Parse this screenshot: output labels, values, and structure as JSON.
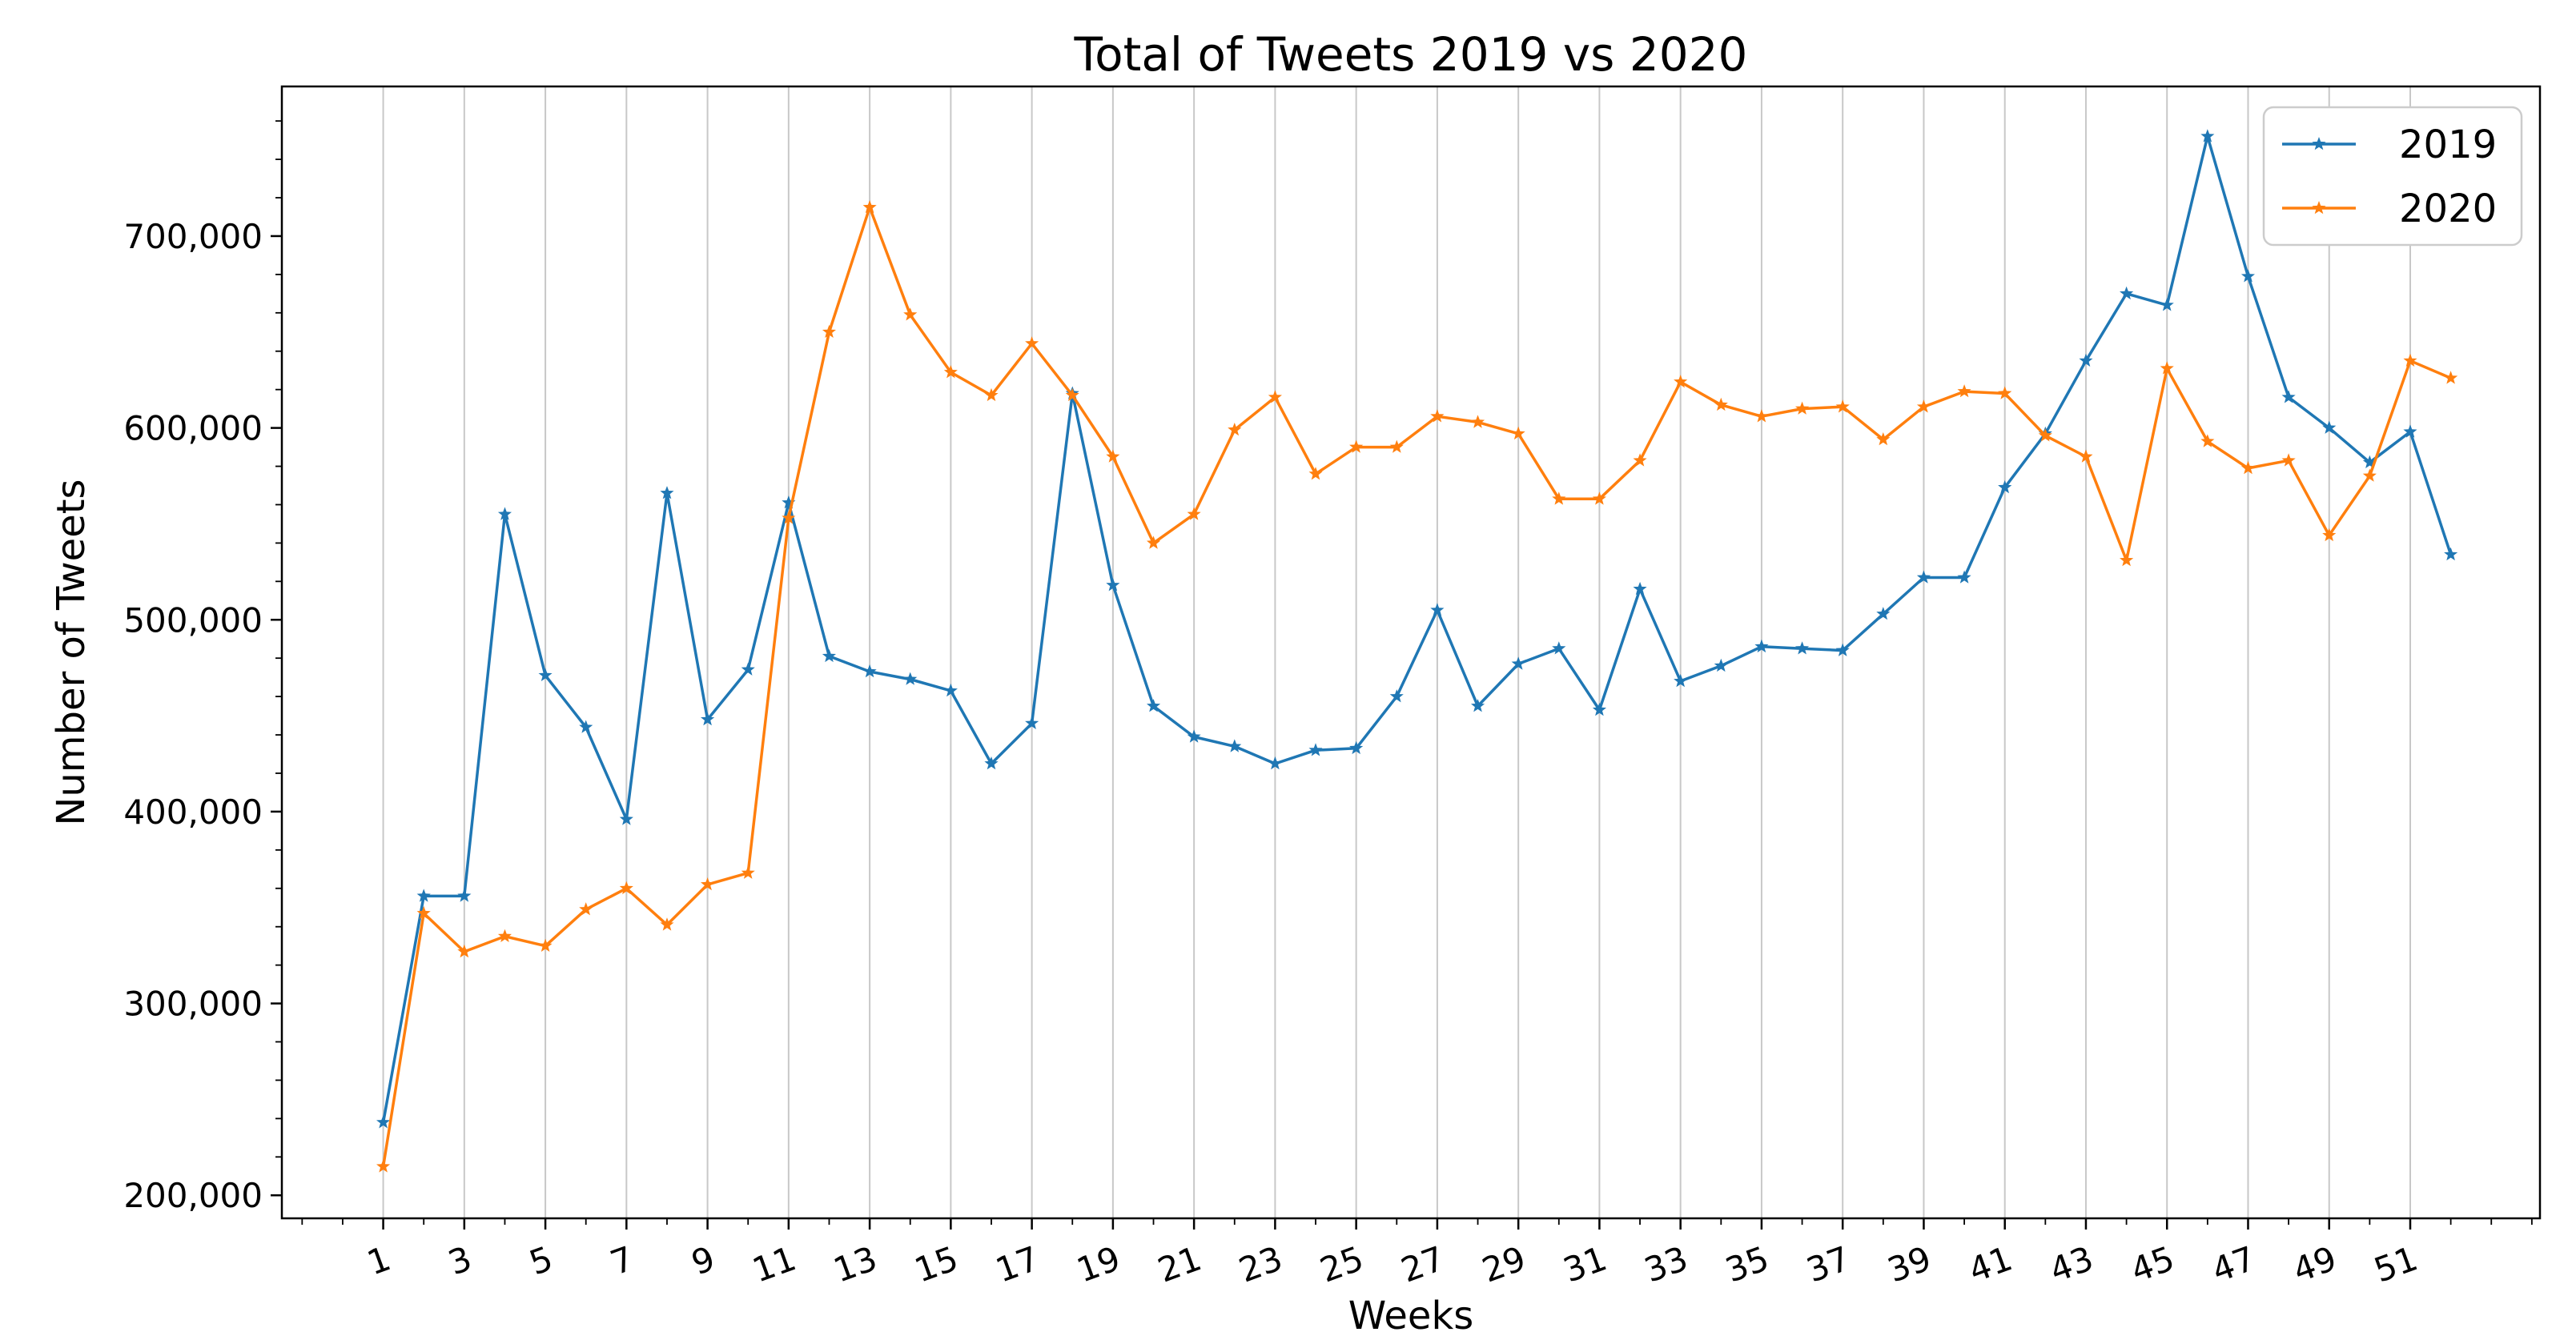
{
  "chart_data": {
    "type": "line",
    "title": "Total of Tweets 2019 vs 2020",
    "xlabel": "Weeks",
    "ylabel": "Number of Tweets",
    "x": [
      1,
      2,
      3,
      4,
      5,
      6,
      7,
      8,
      9,
      10,
      11,
      12,
      13,
      14,
      15,
      16,
      17,
      18,
      19,
      20,
      21,
      22,
      23,
      24,
      25,
      26,
      27,
      28,
      29,
      30,
      31,
      32,
      33,
      34,
      35,
      36,
      37,
      38,
      39,
      40,
      41,
      42,
      43,
      44,
      45,
      46,
      47,
      48,
      49,
      50,
      51,
      52
    ],
    "x_tick_labels": [
      "1",
      "3",
      "5",
      "7",
      "9",
      "11",
      "13",
      "15",
      "17",
      "19",
      "21",
      "23",
      "25",
      "27",
      "29",
      "31",
      "33",
      "35",
      "37",
      "39",
      "41",
      "43",
      "45",
      "47",
      "49",
      "51"
    ],
    "y_tick_labels": [
      "200,000",
      "300,000",
      "400,000",
      "500,000",
      "600,000",
      "700,000"
    ],
    "xlim": [
      -1.5,
      54.2
    ],
    "ylim": [
      188000,
      778000
    ],
    "grid": "vertical",
    "legend_position": "top-right",
    "series": [
      {
        "name": "2019",
        "color": "#1f77b4",
        "values": [
          238000,
          356000,
          356000,
          555000,
          471000,
          444000,
          396000,
          566000,
          448000,
          474000,
          561000,
          481000,
          473000,
          469000,
          463000,
          425000,
          446000,
          618000,
          518000,
          455000,
          439000,
          434000,
          425000,
          432000,
          433000,
          460000,
          505000,
          455000,
          477000,
          485000,
          453000,
          516000,
          468000,
          476000,
          486000,
          485000,
          484000,
          503000,
          522000,
          522000,
          569000,
          597000,
          635000,
          670000,
          664000,
          752000,
          679000,
          616000,
          600000,
          582000,
          598000,
          534000
        ]
      },
      {
        "name": "2020",
        "color": "#ff7f0e",
        "values": [
          215000,
          347000,
          327000,
          335000,
          330000,
          349000,
          360000,
          341000,
          362000,
          368000,
          553000,
          650000,
          715000,
          659000,
          629000,
          617000,
          644000,
          617000,
          585000,
          540000,
          555000,
          599000,
          616000,
          576000,
          590000,
          590000,
          606000,
          603000,
          597000,
          563000,
          563000,
          583000,
          624000,
          612000,
          606000,
          610000,
          611000,
          594000,
          611000,
          619000,
          618000,
          596000,
          585000,
          531000,
          631000,
          593000,
          579000,
          583000,
          544000,
          575000,
          635000,
          626000
        ]
      }
    ]
  }
}
